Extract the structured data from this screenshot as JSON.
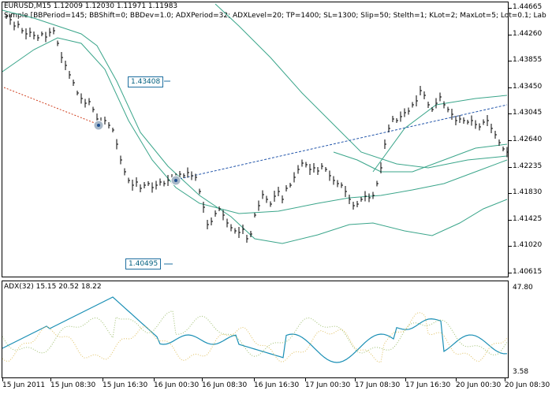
{
  "main": {
    "symbol_line": "EURUSD,M15  1.12009 1.12030 1.11971 1.11983",
    "expert_line": "Simple [BBPeriod=145; BBShift=0; BBDev=1.0; ADXPeriod=32; ADXLevel=20; TP=1400; SL=1300; Slip=50; Stelth=1; KLot=2; MaxLot=5; Lot=0.1; Lab",
    "price_ticks": [
      "1.44665",
      "1.44260",
      "1.43855",
      "1.43450",
      "1.43045",
      "1.42640",
      "1.42235",
      "1.41830",
      "1.41425",
      "1.41020",
      "1.40615"
    ],
    "labels": [
      "1.43408",
      "1.40495"
    ]
  },
  "sub": {
    "title": "ADX(32) 15.15 20.52 18.22",
    "scale_top": "47.80",
    "scale_bottom": "3.58"
  },
  "time_axis": [
    "15 Jun 2011",
    "15 Jun 08:30",
    "15 Jun 16:30",
    "16 Jun 00:30",
    "16 Jun 08:30",
    "16 Jun 16:30",
    "17 Jun 00:30",
    "17 Jun 08:30",
    "17 Jun 16:30",
    "20 Jun 00:30",
    "20 Jun 08:30"
  ],
  "colors": {
    "band": "#3aa58a",
    "adx": "#1a8fb5",
    "di_plus": "#9fbf6f",
    "di_minus": "#e0c060",
    "trend": "#2255aa",
    "trend_red": "#d04020"
  }
}
